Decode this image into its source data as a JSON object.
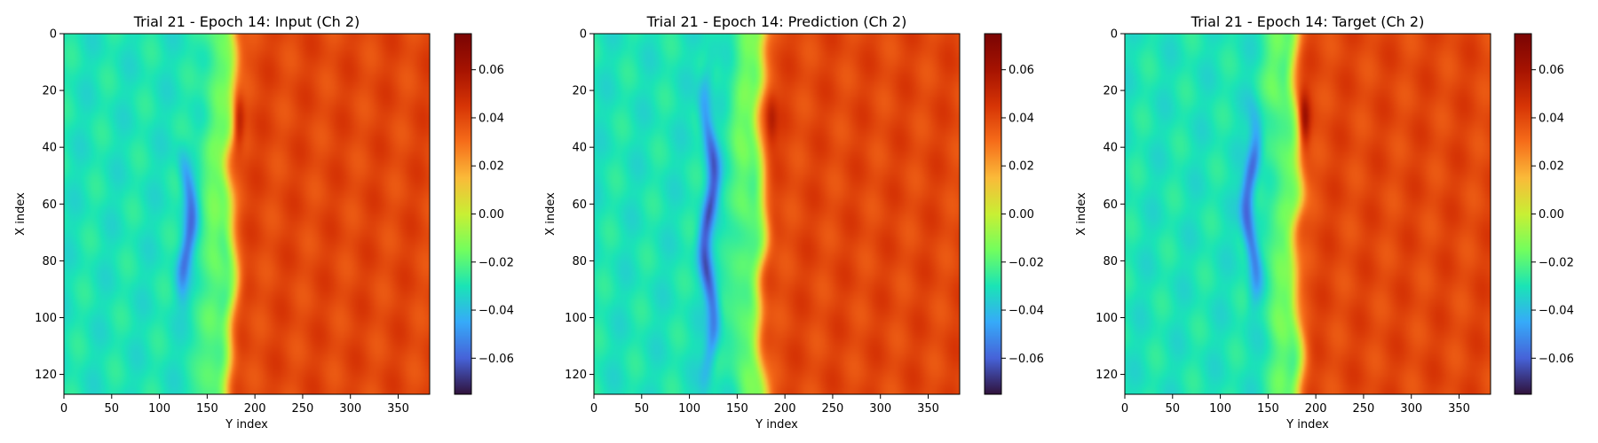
{
  "chart_data": [
    {
      "type": "heatmap",
      "title": "Trial 21 - Epoch 14: Input (Ch 2)",
      "xlabel": "Y index",
      "ylabel": "X index",
      "xlim": [
        0,
        383
      ],
      "ylim": [
        127,
        0
      ],
      "x_ticks": [
        "0",
        "50",
        "100",
        "150",
        "200",
        "250",
        "300",
        "350"
      ],
      "y_ticks": [
        "0",
        "20",
        "40",
        "60",
        "80",
        "100",
        "120"
      ],
      "colorbar": {
        "range": [
          -0.075,
          0.075
        ],
        "ticks": [
          "0.06",
          "0.04",
          "0.02",
          "0.00",
          "−0.02",
          "−0.04",
          "−0.06"
        ],
        "colormap": "turbo"
      },
      "field": {
        "front_y": 175,
        "low_plateau": -0.03,
        "high_plateau": 0.04,
        "blue_streak": {
          "y": 128,
          "x_range": [
            40,
            95
          ],
          "min": -0.055
        },
        "red_peak": {
          "y": 182,
          "x": 30,
          "max": 0.065
        }
      }
    },
    {
      "type": "heatmap",
      "title": "Trial 21 - Epoch 14: Prediction (Ch 2)",
      "xlabel": "Y index",
      "ylabel": "X index",
      "xlim": [
        0,
        383
      ],
      "ylim": [
        127,
        0
      ],
      "x_ticks": [
        "0",
        "50",
        "100",
        "150",
        "200",
        "250",
        "300",
        "350"
      ],
      "y_ticks": [
        "0",
        "20",
        "40",
        "60",
        "80",
        "100",
        "120"
      ],
      "colorbar": {
        "range": [
          -0.075,
          0.075
        ],
        "ticks": [
          "0.06",
          "0.04",
          "0.02",
          "0.00",
          "−0.02",
          "−0.04",
          "−0.06"
        ],
        "colormap": "turbo"
      },
      "field": {
        "front_y": 175,
        "low_plateau": -0.03,
        "high_plateau": 0.04,
        "blue_streak": {
          "y": 120,
          "x_range": [
            10,
            125
          ],
          "min": -0.06
        },
        "red_peak": {
          "y": 185,
          "x": 30,
          "max": 0.055
        }
      }
    },
    {
      "type": "heatmap",
      "title": "Trial 21 - Epoch 14: Target (Ch 2)",
      "xlabel": "Y index",
      "ylabel": "X index",
      "xlim": [
        0,
        383
      ],
      "ylim": [
        127,
        0
      ],
      "x_ticks": [
        "0",
        "50",
        "100",
        "150",
        "200",
        "250",
        "300",
        "350"
      ],
      "y_ticks": [
        "0",
        "20",
        "40",
        "60",
        "80",
        "100",
        "120"
      ],
      "colorbar": {
        "range": [
          -0.075,
          0.075
        ],
        "ticks": [
          "0.06",
          "0.04",
          "0.02",
          "0.00",
          "−0.02",
          "−0.04",
          "−0.06"
        ],
        "colormap": "turbo"
      },
      "field": {
        "front_y": 180,
        "low_plateau": -0.03,
        "high_plateau": 0.04,
        "blue_streak": {
          "y": 132,
          "x_range": [
            25,
            95
          ],
          "min": -0.06
        },
        "red_peak": {
          "y": 187,
          "x": 30,
          "max": 0.07
        }
      }
    }
  ]
}
